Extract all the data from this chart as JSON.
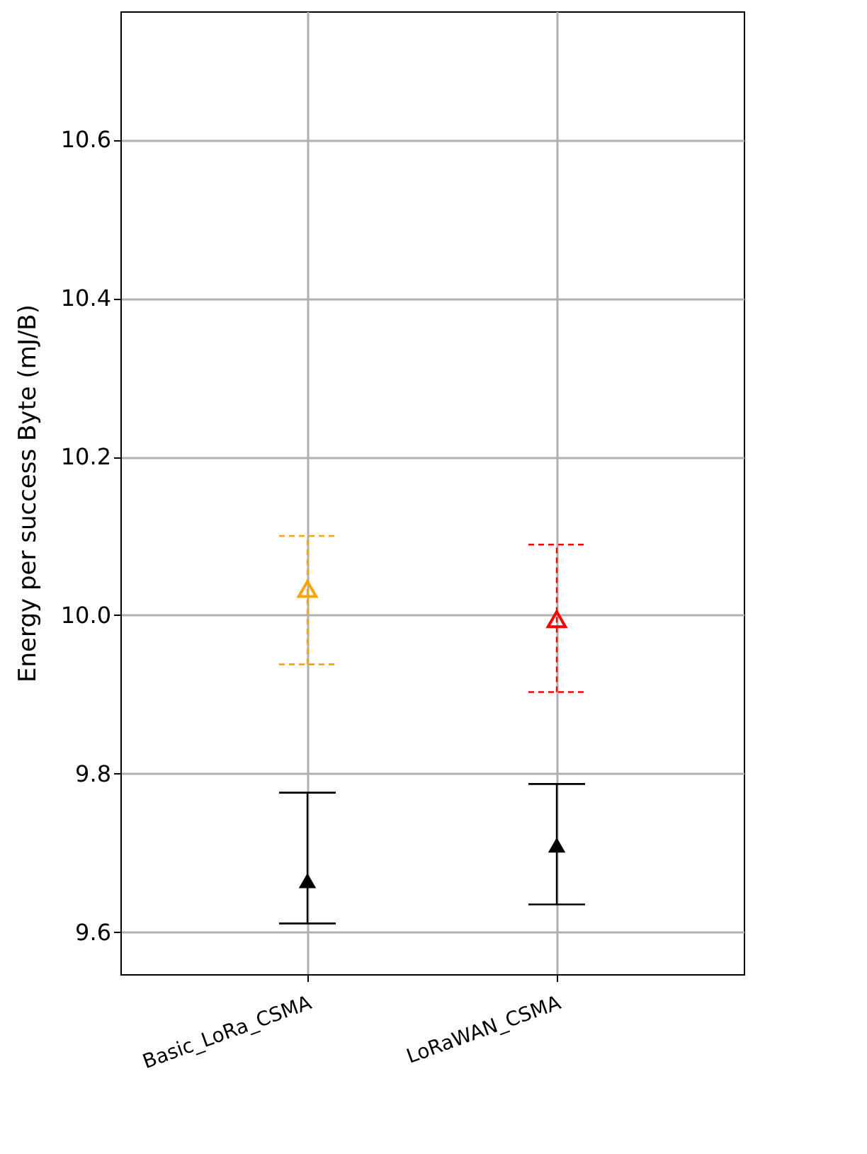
{
  "chart_data": {
    "type": "scatter",
    "categories": [
      "Basic_LoRa_CSMA",
      "LoRaWAN_CSMA"
    ],
    "ylabel": "Energy per success Byte (mJ/B)",
    "ylim": [
      9.547,
      10.762
    ],
    "yticks": [
      9.6,
      9.8,
      {
        "value": 10.0,
        "label": "10.0"
      },
      10.2,
      10.4,
      10.6
    ],
    "grid": true,
    "series": [
      {
        "line_style": "dashed",
        "color": "#ffa500",
        "marker": "triangle",
        "values": [
          10.033,
          null
        ],
        "errors": [
          [
            9.938,
            10.1
          ],
          null
        ]
      },
      {
        "line_style": "dashed",
        "color": "#ff0000",
        "marker": "triangle",
        "values": [
          null,
          9.995
        ],
        "errors": [
          null,
          [
            9.903,
            10.089
          ]
        ]
      },
      {
        "line_style": "solid",
        "color": "#000000",
        "marker": "triangle",
        "values": [
          9.665,
          null
        ],
        "errors": [
          [
            9.611,
            9.776
          ],
          null
        ]
      },
      {
        "line_style": "solid",
        "color": "#000000",
        "marker": "triangle",
        "values": [
          null,
          9.71
        ],
        "errors": [
          null,
          [
            9.635,
            9.787
          ]
        ]
      }
    ]
  }
}
